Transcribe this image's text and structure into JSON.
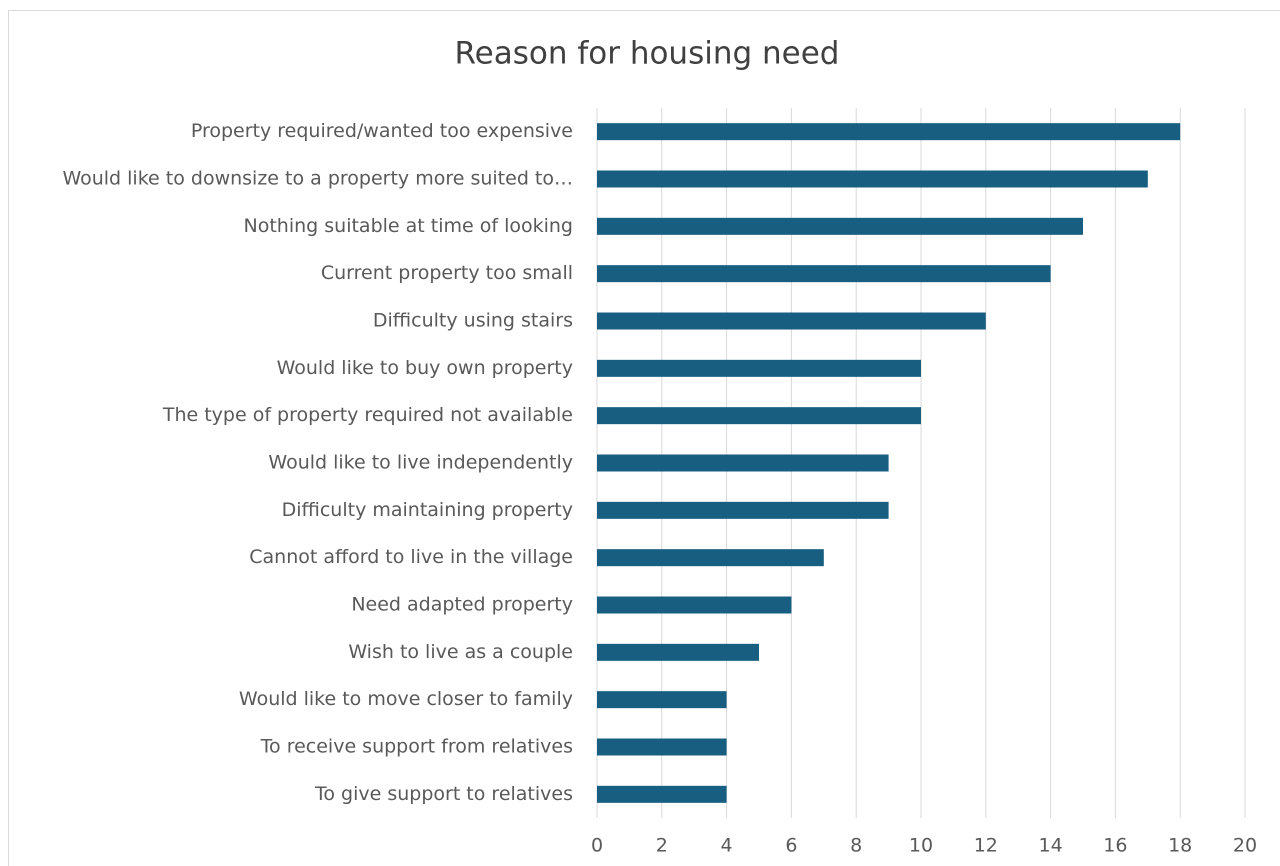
{
  "chart_data": {
    "type": "bar",
    "orientation": "horizontal",
    "title": "Reason for housing need",
    "categories": [
      "Property required/wanted too expensive",
      "Would like to downsize to a property more suited to…",
      "Nothing suitable at time of looking",
      "Current property too small",
      "Difficulty using stairs",
      "Would like to buy own property",
      "The type of property required not available",
      "Would like to live independently",
      "Difficulty maintaining property",
      "Cannot afford to live in the village",
      "Need adapted property",
      "Wish to live as a couple",
      "Would like to move closer to family",
      "To receive support from relatives",
      "To give support to relatives"
    ],
    "values": [
      18,
      17,
      15,
      14,
      12,
      10,
      10,
      9,
      9,
      7,
      6,
      5,
      4,
      4,
      4
    ],
    "color": "#175e80",
    "xlim": [
      0,
      20
    ],
    "xticks": [
      0,
      2,
      4,
      6,
      8,
      10,
      12,
      14,
      16,
      18,
      20
    ],
    "grid": true
  }
}
